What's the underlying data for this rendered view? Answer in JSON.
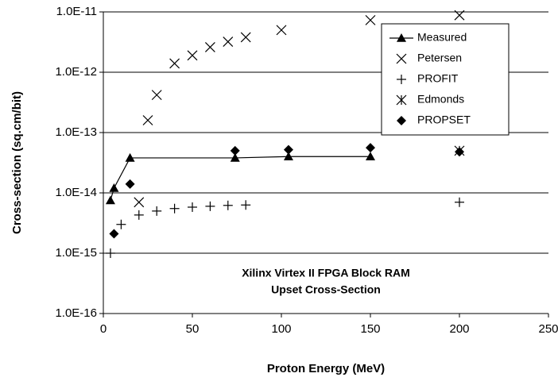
{
  "chart_data": {
    "type": "scatter",
    "xlabel": "Proton Energy (MeV)",
    "ylabel": "Cross-section (sq.cm/bit)",
    "annotation": [
      "Xilinx Virtex II FPGA Block RAM",
      "Upset Cross-Section"
    ],
    "xlim": [
      0,
      250
    ],
    "xticks": [
      0,
      50,
      100,
      150,
      200,
      250
    ],
    "ylim": [
      1e-16,
      1e-11
    ],
    "ylog": true,
    "yticks": [
      {
        "value": 1e-16,
        "label": "1.0E-16"
      },
      {
        "value": 1e-15,
        "label": "1.0E-15"
      },
      {
        "value": 1e-14,
        "label": "1.0E-14"
      },
      {
        "value": 1e-13,
        "label": "1.0E-13"
      },
      {
        "value": 1e-12,
        "label": "1.0E-12"
      },
      {
        "value": 1e-11,
        "label": "1.0E-11"
      }
    ],
    "grid": true,
    "legend": "upper right",
    "series": [
      {
        "name": "Measured",
        "color": "#000000",
        "marker": "triangle",
        "line": true,
        "x": [
          4,
          6,
          15,
          74,
          104,
          150
        ],
        "values": [
          7.5e-15,
          1.2e-14,
          3.8e-14,
          3.8e-14,
          4e-14,
          4e-14
        ]
      },
      {
        "name": "Petersen",
        "color": "#000000",
        "marker": "x",
        "x": [
          20,
          25,
          30,
          40,
          50,
          60,
          70,
          80,
          100,
          150,
          200
        ],
        "values": [
          7e-15,
          1.6e-13,
          4.2e-13,
          1.4e-12,
          1.9e-12,
          2.6e-12,
          3.2e-12,
          3.8e-12,
          5e-12,
          7.3e-12,
          8.8e-12
        ]
      },
      {
        "name": "PROFIT",
        "color": "#000000",
        "marker": "plus",
        "x": [
          4,
          10,
          20,
          30,
          40,
          50,
          60,
          70,
          80,
          200
        ],
        "values": [
          1e-15,
          3e-15,
          4.3e-15,
          5e-15,
          5.5e-15,
          5.8e-15,
          6e-15,
          6.2e-15,
          6.3e-15,
          7e-15
        ]
      },
      {
        "name": "Edmonds",
        "color": "#000000",
        "marker": "asterisk",
        "x": [
          200
        ],
        "values": [
          5e-14
        ]
      },
      {
        "name": "PROPSET",
        "color": "#000000",
        "marker": "diamond",
        "x": [
          6,
          15,
          74,
          104,
          150,
          200
        ],
        "values": [
          2.1e-15,
          1.4e-14,
          5e-14,
          5.2e-14,
          5.6e-14,
          4.8e-14
        ]
      }
    ]
  }
}
